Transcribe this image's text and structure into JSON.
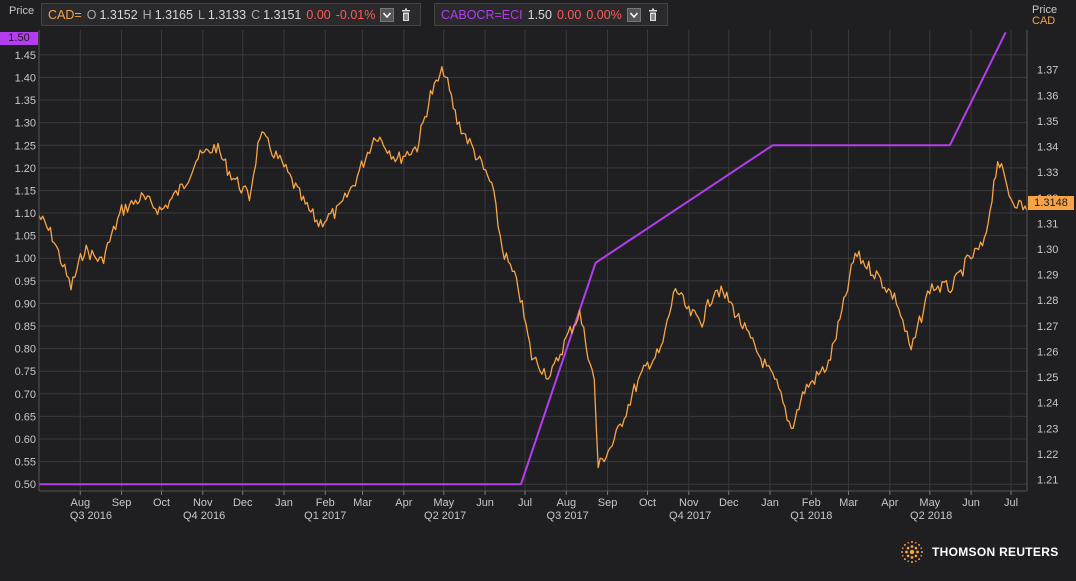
{
  "legend": {
    "cad": {
      "symbol": "CAD=",
      "o_label": "O",
      "o_value": "1.3152",
      "h_label": "H",
      "h_value": "1.3165",
      "l_label": "L",
      "l_value": "1.3133",
      "c_label": "C",
      "c_value": "1.3151",
      "change": "0.00",
      "change_pct": "-0.01%",
      "color": "#f7a447"
    },
    "rate": {
      "symbol": "CABOCR=ECI",
      "value": "1.50",
      "change": "0.00",
      "change_pct": "0.00%",
      "color": "#b43df0"
    },
    "icons": [
      "chevron-down-icon",
      "trash-icon"
    ]
  },
  "left_axis_title": "Price",
  "right_axis_title": "Price",
  "right_axis_unit": "CAD",
  "left_badge": "1.50",
  "right_badge": "1.3148",
  "branding": "THOMSON REUTERS",
  "colors": {
    "background": "#1f1f21",
    "grid": "#3a3a3c",
    "text": "#c8c8c8",
    "down": "#ff5a5a"
  },
  "chart_data": {
    "type": "line",
    "grid": true,
    "x_month_labels": [
      "Aug",
      "Sep",
      "Oct",
      "Nov",
      "Dec",
      "Jan",
      "Feb",
      "Mar",
      "Apr",
      "May",
      "Jun",
      "Jul",
      "Aug",
      "Sep",
      "Oct",
      "Nov",
      "Dec",
      "Jan",
      "Feb",
      "Mar",
      "Apr",
      "May",
      "Jun",
      "Jul"
    ],
    "x_quarter_labels": [
      "Q3 2016",
      "Q4 2016",
      "Q1 2017",
      "Q2 2017",
      "Q3 2017",
      "Q4 2017",
      "Q1 2018",
      "Q2 2018"
    ],
    "x_range": [
      "2016-07-15",
      "2018-07-27"
    ],
    "left_axis": {
      "ticks": [
        0.5,
        0.55,
        0.6,
        0.65,
        0.7,
        0.75,
        0.8,
        0.85,
        0.9,
        0.95,
        1.0,
        1.05,
        1.1,
        1.15,
        1.2,
        1.25,
        1.3,
        1.35,
        1.4,
        1.45
      ],
      "range": [
        0.485,
        1.505
      ]
    },
    "right_axis": {
      "ticks": [
        1.21,
        1.22,
        1.23,
        1.24,
        1.25,
        1.26,
        1.27,
        1.28,
        1.29,
        1.3,
        1.31,
        1.32,
        1.33,
        1.34,
        1.35,
        1.36,
        1.37
      ],
      "range": [
        1.2055,
        1.3855
      ]
    },
    "series": [
      {
        "name": "CABOCR=ECI",
        "axis": "left",
        "x": [
          "2016-07-15",
          "2017-07-12",
          "2017-09-06",
          "2018-01-17",
          "2018-05-30",
          "2018-07-11"
        ],
        "y": [
          0.5,
          0.5,
          0.99,
          1.25,
          1.25,
          1.5
        ]
      },
      {
        "name": "CAD=",
        "axis": "right",
        "x": [
          "2016-07-15",
          "2016-07-25",
          "2016-08-08",
          "2016-08-18",
          "2016-08-31",
          "2016-09-15",
          "2016-09-30",
          "2016-10-15",
          "2016-11-01",
          "2016-11-10",
          "2016-11-25",
          "2016-12-05",
          "2016-12-20",
          "2016-12-28",
          "2017-01-15",
          "2017-01-31",
          "2017-02-10",
          "2017-02-25",
          "2017-03-08",
          "2017-03-25",
          "2017-04-10",
          "2017-04-25",
          "2017-05-05",
          "2017-05-15",
          "2017-05-25",
          "2017-06-05",
          "2017-06-20",
          "2017-06-28",
          "2017-07-10",
          "2017-07-20",
          "2017-08-03",
          "2017-08-15",
          "2017-08-25",
          "2017-09-05",
          "2017-09-08",
          "2017-09-20",
          "2017-10-05",
          "2017-10-15",
          "2017-10-25",
          "2017-11-05",
          "2017-11-15",
          "2017-11-25",
          "2017-12-05",
          "2017-12-15",
          "2018-01-05",
          "2018-01-20",
          "2018-01-31",
          "2018-02-10",
          "2018-02-28",
          "2018-03-10",
          "2018-03-20",
          "2018-04-05",
          "2018-04-20",
          "2018-05-01",
          "2018-05-15",
          "2018-06-01",
          "2018-06-12",
          "2018-06-25",
          "2018-07-05",
          "2018-07-15",
          "2018-07-27"
        ],
        "y": [
          1.313,
          1.305,
          1.285,
          1.3,
          1.295,
          1.315,
          1.32,
          1.315,
          1.325,
          1.335,
          1.34,
          1.33,
          1.32,
          1.345,
          1.332,
          1.317,
          1.31,
          1.315,
          1.325,
          1.345,
          1.335,
          1.34,
          1.36,
          1.37,
          1.35,
          1.34,
          1.325,
          1.3,
          1.285,
          1.258,
          1.25,
          1.265,
          1.275,
          1.248,
          1.215,
          1.225,
          1.245,
          1.255,
          1.26,
          1.285,
          1.275,
          1.272,
          1.285,
          1.28,
          1.26,
          1.247,
          1.23,
          1.245,
          1.255,
          1.275,
          1.298,
          1.29,
          1.28,
          1.26,
          1.285,
          1.285,
          1.295,
          1.302,
          1.335,
          1.32,
          1.315
        ]
      }
    ]
  }
}
